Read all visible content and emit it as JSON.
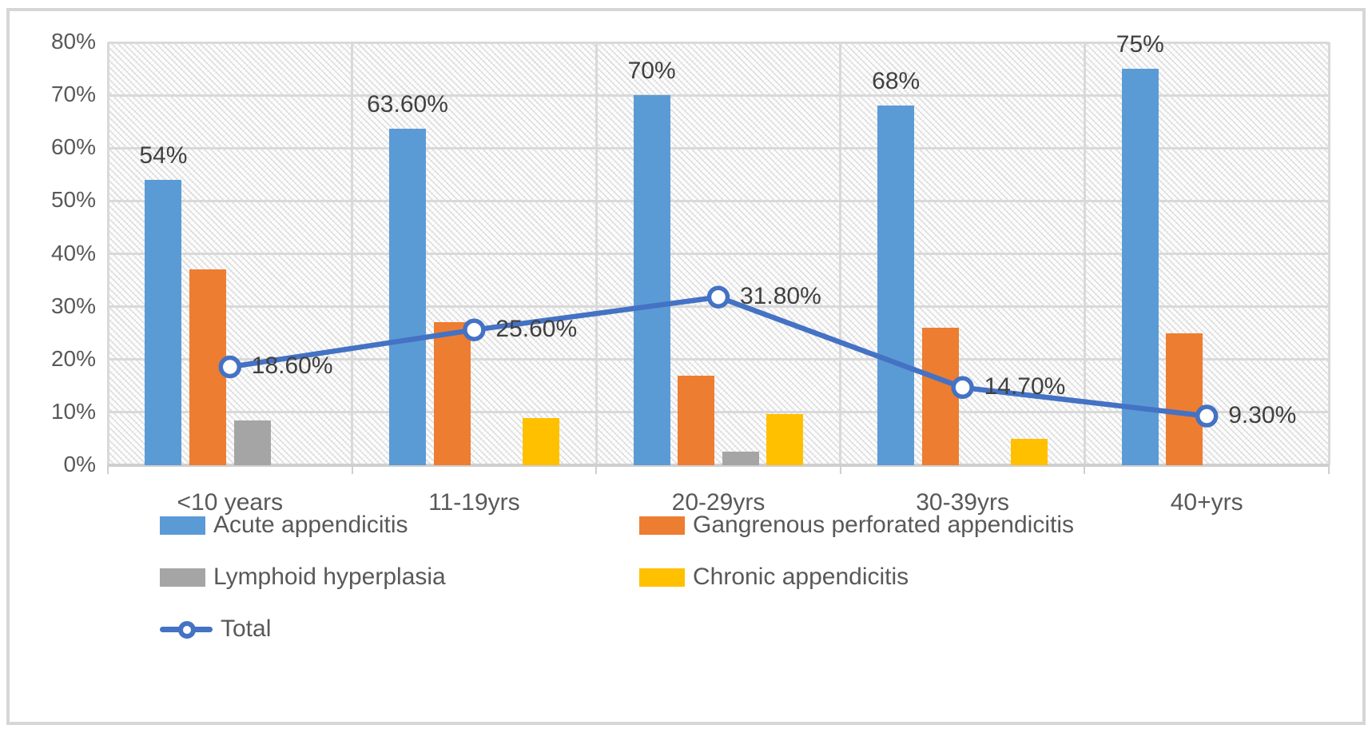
{
  "chart_data": {
    "type": "combo-bar-line",
    "title": "",
    "xlabel": "",
    "ylabel": "",
    "categories": [
      "<10 years",
      "11-19yrs",
      "20-29yrs",
      "30-39yrs",
      "40+yrs"
    ],
    "series": [
      {
        "name": "Acute appendicitis",
        "type": "bar",
        "color": "#5B9BD5",
        "values": [
          54,
          63.6,
          70,
          68,
          75
        ],
        "labels": [
          "54%",
          "63.60%",
          "70%",
          "68%",
          "75%"
        ]
      },
      {
        "name": "Gangrenous perforated appendicitis",
        "type": "bar",
        "color": "#ED7D31",
        "values": [
          37,
          27,
          17,
          26,
          25
        ],
        "labels": null
      },
      {
        "name": "Lymphoid hyperplasia",
        "type": "bar",
        "color": "#A5A5A5",
        "values": [
          8.5,
          0,
          2.5,
          0,
          0
        ],
        "labels": null
      },
      {
        "name": "Chronic appendicitis",
        "type": "bar",
        "color": "#FFC000",
        "values": [
          0,
          9,
          9.7,
          5,
          0
        ],
        "labels": null
      },
      {
        "name": "Total",
        "type": "line",
        "color": "#4472C4",
        "values": [
          18.6,
          25.6,
          31.8,
          14.7,
          9.3
        ],
        "labels": [
          "18.60%",
          "25.60%",
          "31.80%",
          "14.70%",
          "9.30%"
        ]
      }
    ],
    "y_axis": {
      "min": 0,
      "max": 80,
      "step": 10,
      "tick_labels": [
        "0%",
        "10%",
        "20%",
        "30%",
        "40%",
        "50%",
        "60%",
        "70%",
        "80%"
      ]
    },
    "grid": true,
    "plot_background": "diagonal-hatch",
    "legend_position": "bottom"
  },
  "colors": {
    "acute_blue": "#5B9BD5",
    "gangrenous_orange": "#ED7D31",
    "lymphoid_gray": "#A5A5A5",
    "chronic_yellow": "#FFC000",
    "total_line_blue": "#4472C4",
    "gridline": "#D9D9D9",
    "axis_text": "#595959",
    "data_label_text": "#404040",
    "frame_border": "#D6D6D6"
  }
}
